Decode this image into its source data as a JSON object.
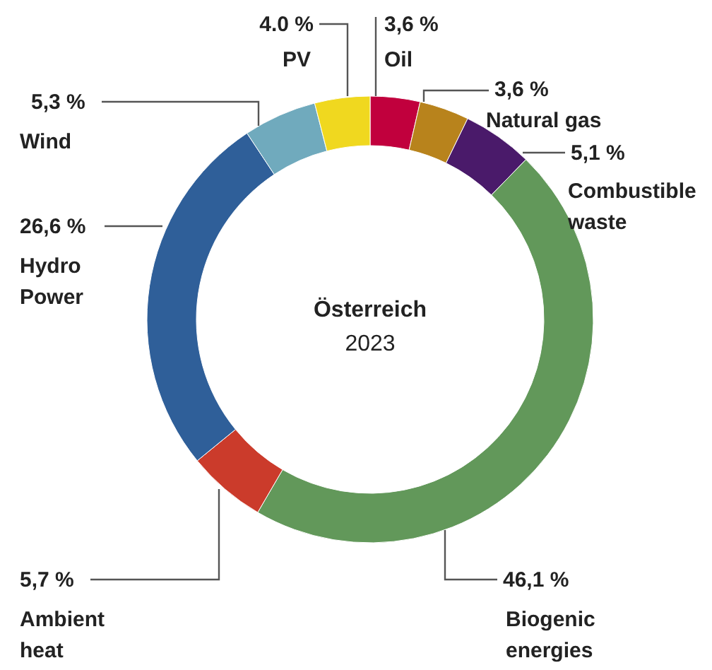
{
  "chart_data": {
    "type": "donut",
    "title": "Österreich",
    "subtitle": "2023",
    "categories": [
      "Oil",
      "Natural gas",
      "Combustible waste",
      "Biogenic energies",
      "Ambient heat",
      "Hydro Power",
      "Wind",
      "PV"
    ],
    "values": [
      3.6,
      3.6,
      5.1,
      46.1,
      5.7,
      26.6,
      5.3,
      4.0
    ],
    "value_labels": [
      "3,6 %",
      "3,6 %",
      "5,1 %",
      "46,1 %",
      "5,7 %",
      "26,6 %",
      "5,3 %",
      "4.0 %"
    ],
    "colors": [
      "#c1003d",
      "#b8831c",
      "#4a1a6a",
      "#62985a",
      "#cb3b2b",
      "#2f5f99",
      "#70aabd",
      "#f0d81f"
    ]
  }
}
